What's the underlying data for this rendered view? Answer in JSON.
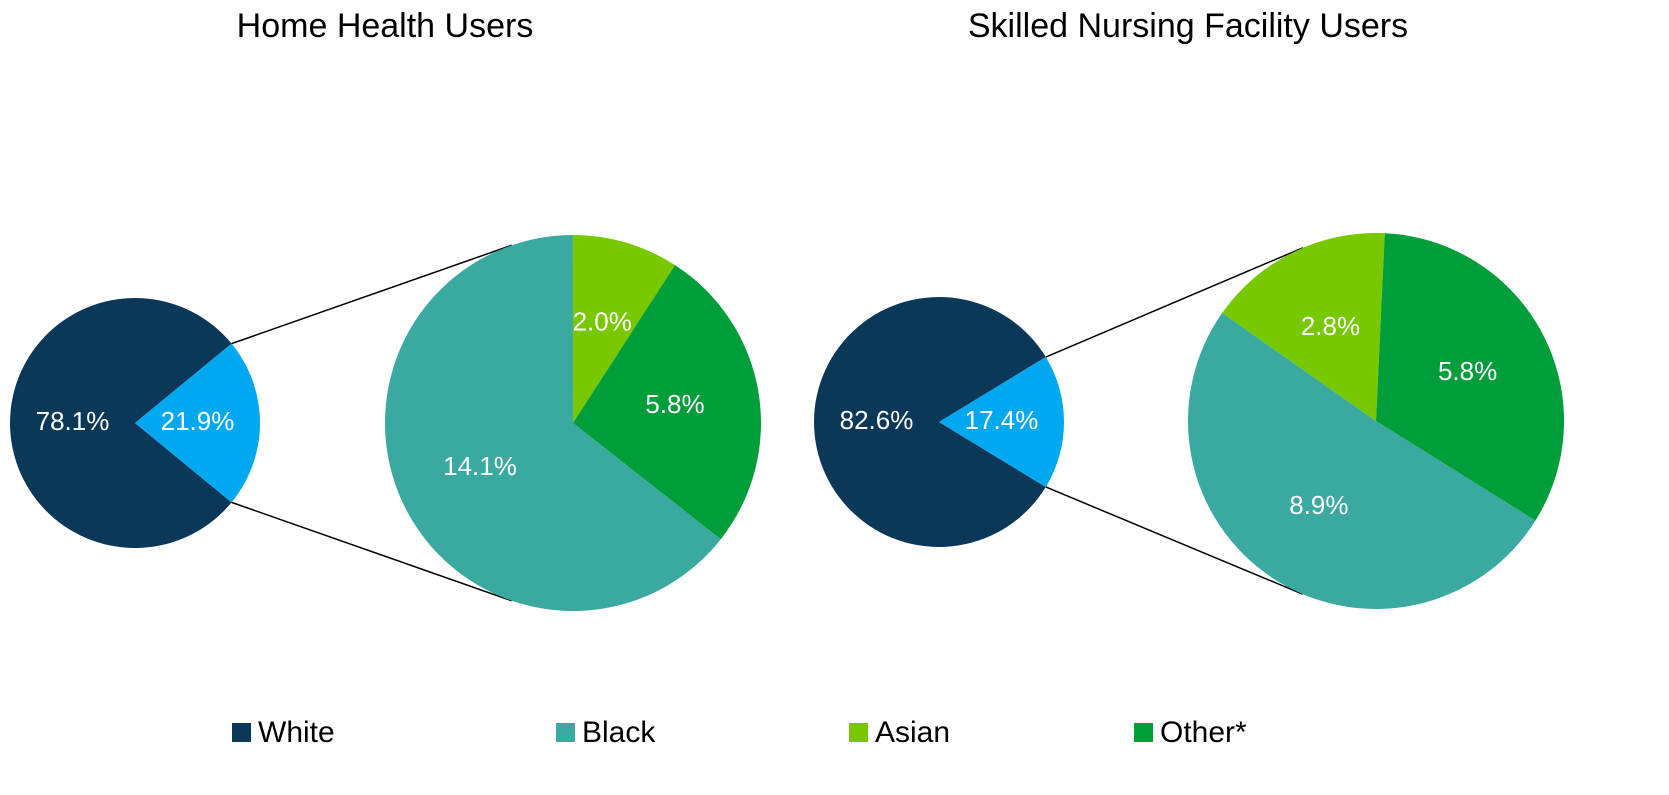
{
  "chart_data": [
    {
      "type": "pie-of-pie",
      "title": "Home Health Users",
      "main": {
        "values": [
          78.1,
          21.9
        ],
        "value_labels": [
          "78.1%",
          "21.9%"
        ],
        "colors": [
          "#0b3858",
          "#00a8f0"
        ]
      },
      "detail": {
        "values": [
          14.1,
          2.0,
          5.8
        ],
        "value_labels": [
          "14.1%",
          "2.0%",
          "5.8%"
        ],
        "colors": [
          "#3aaaa0",
          "#78c800",
          "#009e3a"
        ]
      }
    },
    {
      "type": "pie-of-pie",
      "title": "Skilled Nursing Facility Users",
      "main": {
        "values": [
          82.6,
          17.4
        ],
        "value_labels": [
          "82.6%",
          "17.4%"
        ],
        "colors": [
          "#0b3858",
          "#00a8f0"
        ]
      },
      "detail": {
        "values": [
          8.9,
          2.8,
          5.8
        ],
        "value_labels": [
          "8.9%",
          "2.8%",
          "5.8%"
        ],
        "colors": [
          "#3aaaa0",
          "#78c800",
          "#009e3a"
        ]
      }
    }
  ],
  "legend": {
    "labels": [
      "White",
      "Black",
      "Asian",
      "Other*"
    ],
    "colors": [
      "#0b3858",
      "#3aaaa0",
      "#78c800",
      "#009e3a"
    ]
  }
}
